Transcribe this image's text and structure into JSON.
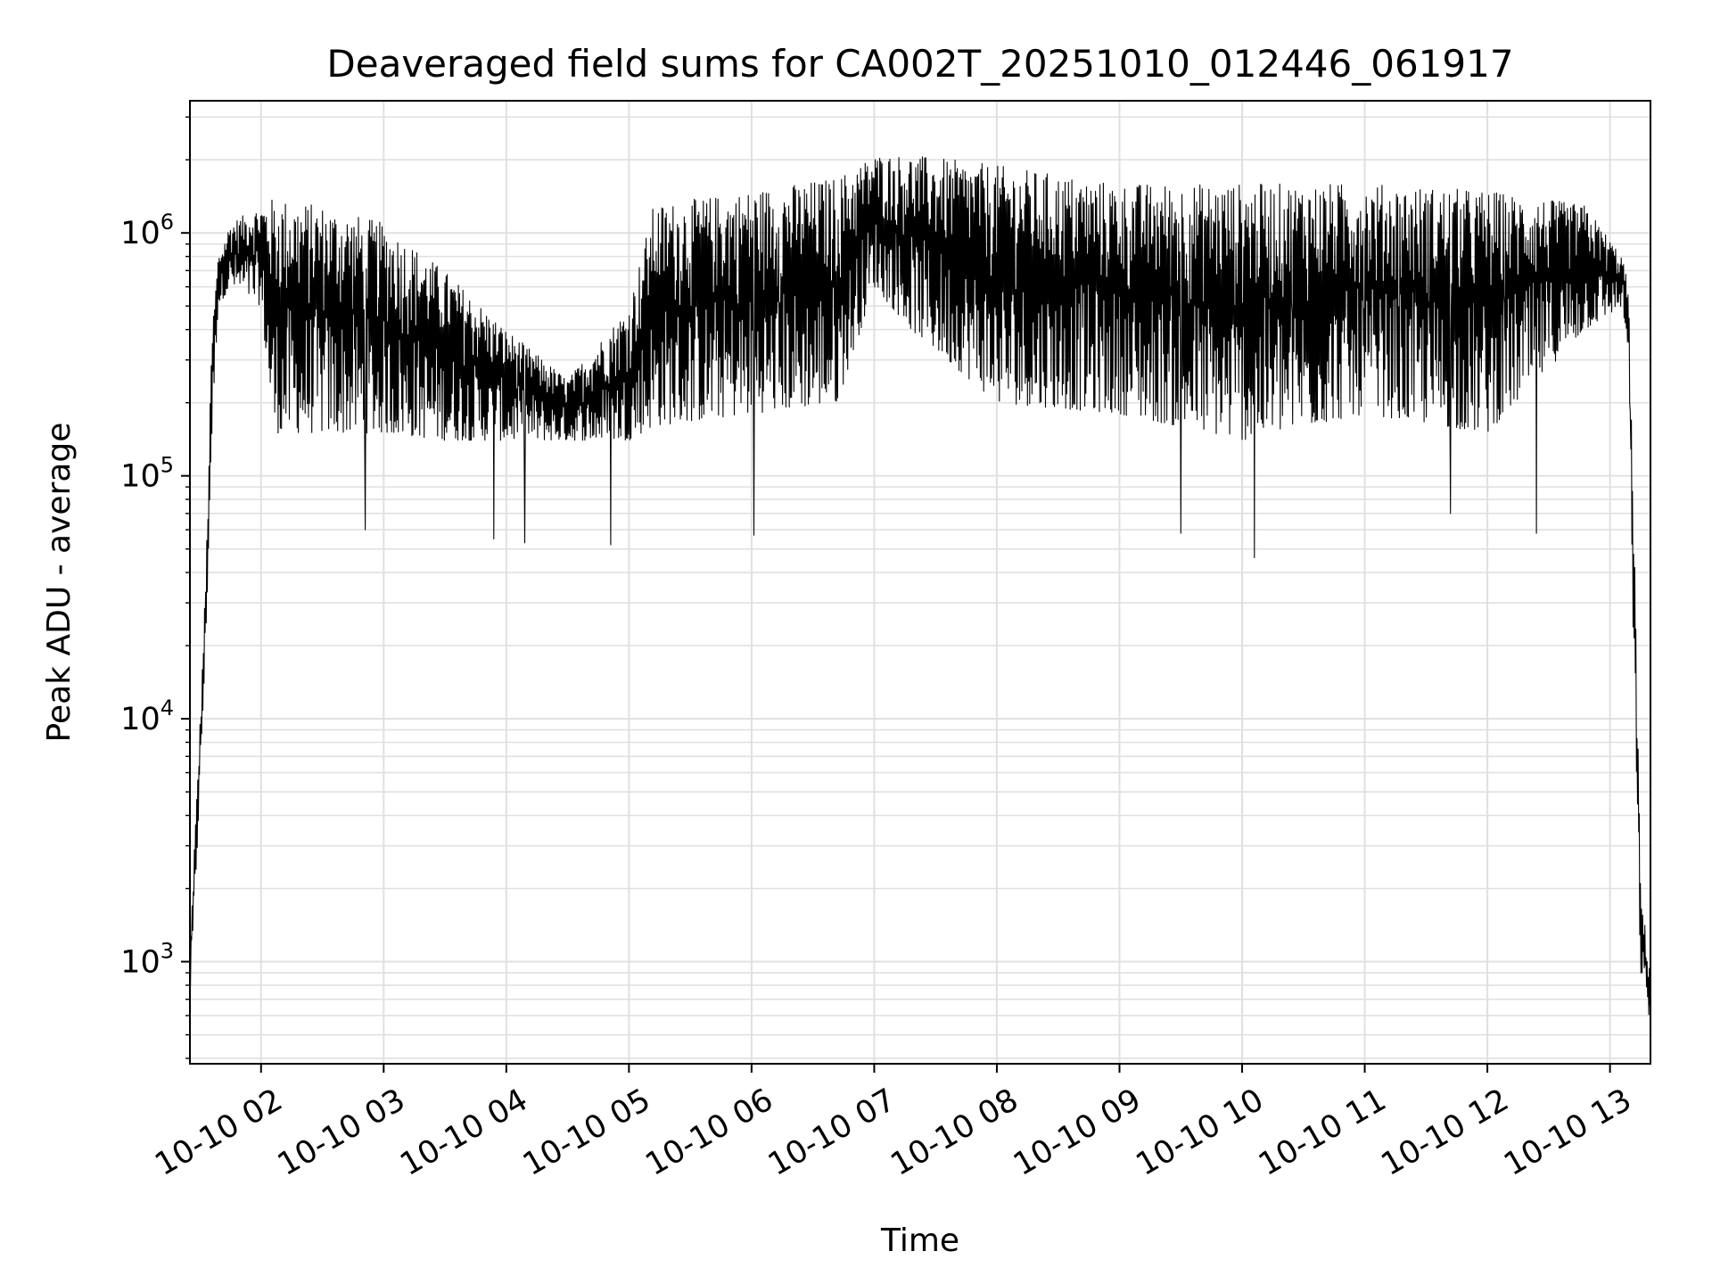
{
  "chart_data": {
    "type": "line",
    "title": "Deaveraged field sums for CA002T_20251010_012446_061917",
    "xlabel": "Time",
    "ylabel": "Peak ADU - average",
    "yscale": "log",
    "ylim": [
      380,
      3500000
    ],
    "xlim_hours": [
      1.42,
      13.33
    ],
    "x_ticks": [
      {
        "hour": 2,
        "label": "10-10 02"
      },
      {
        "hour": 3,
        "label": "10-10 03"
      },
      {
        "hour": 4,
        "label": "10-10 04"
      },
      {
        "hour": 5,
        "label": "10-10 05"
      },
      {
        "hour": 6,
        "label": "10-10 06"
      },
      {
        "hour": 7,
        "label": "10-10 07"
      },
      {
        "hour": 8,
        "label": "10-10 08"
      },
      {
        "hour": 9,
        "label": "10-10 09"
      },
      {
        "hour": 10,
        "label": "10-10 10"
      },
      {
        "hour": 11,
        "label": "10-10 11"
      },
      {
        "hour": 12,
        "label": "10-10 12"
      },
      {
        "hour": 13,
        "label": "10-10 13"
      }
    ],
    "y_ticks": [
      {
        "value": 1000,
        "base": "10",
        "exp": "3"
      },
      {
        "value": 10000,
        "base": "10",
        "exp": "4"
      },
      {
        "value": 100000,
        "base": "10",
        "exp": "5"
      },
      {
        "value": 1000000,
        "base": "10",
        "exp": "6"
      }
    ],
    "grid": true,
    "line_color": "#000000",
    "grid_color": "#e0e0e0",
    "series": [
      {
        "name": "field sums",
        "profile": [
          {
            "hour": 1.42,
            "low": 700,
            "high": 1000
          },
          {
            "hour": 1.45,
            "low": 1300,
            "high": 2600
          },
          {
            "hour": 1.5,
            "low": 5000,
            "high": 9000
          },
          {
            "hour": 1.55,
            "low": 20000,
            "high": 40000
          },
          {
            "hour": 1.6,
            "low": 150000,
            "high": 400000
          },
          {
            "hour": 1.65,
            "low": 500000,
            "high": 800000
          },
          {
            "hour": 1.75,
            "low": 600000,
            "high": 1100000
          },
          {
            "hour": 2.0,
            "low": 500000,
            "high": 1300000
          },
          {
            "hour": 2.1,
            "low": 150000,
            "high": 1400000
          },
          {
            "hour": 2.5,
            "low": 150000,
            "high": 1300000
          },
          {
            "hour": 3.0,
            "low": 150000,
            "high": 1100000
          },
          {
            "hour": 3.5,
            "low": 140000,
            "high": 700000
          },
          {
            "hour": 4.0,
            "low": 140000,
            "high": 400000
          },
          {
            "hour": 4.5,
            "low": 140000,
            "high": 250000
          },
          {
            "hour": 5.0,
            "low": 140000,
            "high": 500000
          },
          {
            "hour": 5.2,
            "low": 160000,
            "high": 1300000
          },
          {
            "hour": 6.0,
            "low": 180000,
            "high": 1500000
          },
          {
            "hour": 6.7,
            "low": 200000,
            "high": 1700000
          },
          {
            "hour": 7.0,
            "low": 600000,
            "high": 2100000
          },
          {
            "hour": 7.3,
            "low": 400000,
            "high": 2100000
          },
          {
            "hour": 8.0,
            "low": 200000,
            "high": 1900000
          },
          {
            "hour": 9.0,
            "low": 180000,
            "high": 1600000
          },
          {
            "hour": 10.0,
            "low": 140000,
            "high": 1600000
          },
          {
            "hour": 11.0,
            "low": 180000,
            "high": 1600000
          },
          {
            "hour": 12.0,
            "low": 150000,
            "high": 1500000
          },
          {
            "hour": 12.8,
            "low": 400000,
            "high": 1300000
          },
          {
            "hour": 13.1,
            "low": 500000,
            "high": 800000
          },
          {
            "hour": 13.15,
            "low": 300000,
            "high": 600000
          },
          {
            "hour": 13.2,
            "low": 10000,
            "high": 50000
          },
          {
            "hour": 13.25,
            "low": 900,
            "high": 2000
          },
          {
            "hour": 13.33,
            "low": 550,
            "high": 900
          }
        ],
        "notable_dips": [
          {
            "hour": 2.85,
            "value": 60000
          },
          {
            "hour": 3.9,
            "value": 55000
          },
          {
            "hour": 4.15,
            "value": 53000
          },
          {
            "hour": 4.85,
            "value": 52000
          },
          {
            "hour": 6.02,
            "value": 57000
          },
          {
            "hour": 9.5,
            "value": 58000
          },
          {
            "hour": 10.1,
            "value": 46000
          },
          {
            "hour": 11.7,
            "value": 70000
          },
          {
            "hour": 12.4,
            "value": 58000
          }
        ]
      }
    ]
  }
}
